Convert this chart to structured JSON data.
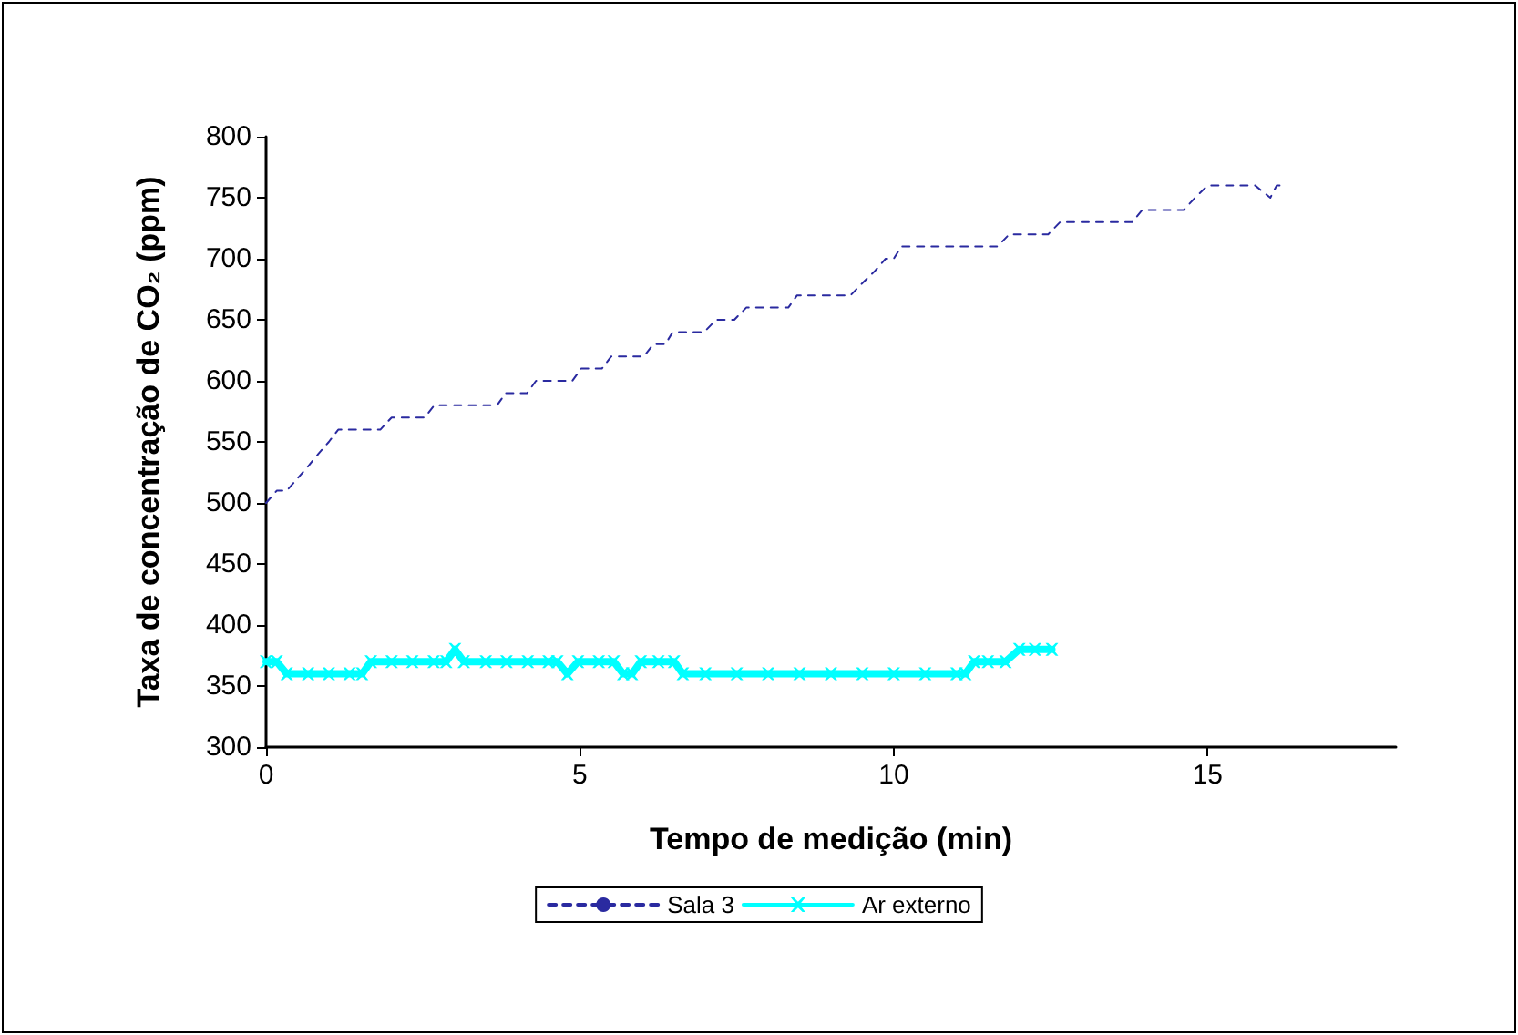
{
  "chart_data": {
    "type": "line",
    "xlabel": "Tempo de medição (min)",
    "ylabel": "Taxa de concentração de CO₂ (ppm)",
    "xlim": [
      0,
      18
    ],
    "xticks": [
      0,
      5,
      10,
      15
    ],
    "ylim": [
      300,
      800
    ],
    "yticks": [
      300,
      350,
      400,
      450,
      500,
      550,
      600,
      650,
      700,
      750,
      800
    ],
    "grid": false,
    "legend": "bottom",
    "series": [
      {
        "name": "Sala 3",
        "color": "#2a2aa0",
        "line_style": "dashed",
        "marker": "none",
        "x": [
          0,
          0.17,
          0.33,
          0.5,
          0.67,
          0.83,
          1.0,
          1.15,
          1.82,
          2.0,
          2.53,
          2.68,
          3.68,
          3.82,
          4.16,
          4.3,
          4.88,
          5.02,
          5.35,
          5.5,
          6.02,
          6.17,
          6.36,
          6.48,
          6.98,
          7.17,
          7.46,
          7.65,
          8.32,
          8.46,
          9.31,
          9.5,
          9.7,
          9.87,
          10.0,
          10.12,
          11.65,
          11.84,
          12.46,
          12.65,
          13.8,
          13.96,
          14.62,
          14.8,
          15.0,
          15.76,
          16.0,
          16.1,
          16.2
        ],
        "values": [
          500,
          510,
          510,
          520,
          530,
          540,
          550,
          560,
          560,
          570,
          570,
          580,
          580,
          590,
          590,
          600,
          600,
          610,
          610,
          620,
          620,
          630,
          630,
          640,
          640,
          650,
          650,
          660,
          660,
          670,
          670,
          680,
          690,
          700,
          700,
          710,
          710,
          720,
          720,
          730,
          730,
          740,
          740,
          750,
          760,
          760,
          750,
          760,
          760
        ]
      },
      {
        "name": "Ar externo",
        "color": "#00ffff",
        "line_style": "solid",
        "marker": "cross",
        "x": [
          0,
          0.17,
          0.33,
          0.67,
          1.0,
          1.33,
          1.53,
          1.67,
          2.0,
          2.33,
          2.67,
          2.87,
          3.01,
          3.15,
          3.5,
          3.83,
          4.17,
          4.5,
          4.64,
          4.8,
          4.97,
          5.3,
          5.54,
          5.69,
          5.83,
          5.97,
          6.25,
          6.5,
          6.64,
          7.0,
          7.5,
          8.0,
          8.5,
          9.0,
          9.5,
          10.0,
          10.5,
          11.0,
          11.14,
          11.28,
          11.5,
          11.78,
          12.0,
          12.25,
          12.52
        ],
        "values": [
          370,
          370,
          360,
          360,
          360,
          360,
          360,
          370,
          370,
          370,
          370,
          370,
          380,
          370,
          370,
          370,
          370,
          370,
          370,
          360,
          370,
          370,
          370,
          360,
          360,
          370,
          370,
          370,
          360,
          360,
          360,
          360,
          360,
          360,
          360,
          360,
          360,
          360,
          360,
          370,
          370,
          370,
          380,
          380,
          380
        ]
      }
    ]
  }
}
